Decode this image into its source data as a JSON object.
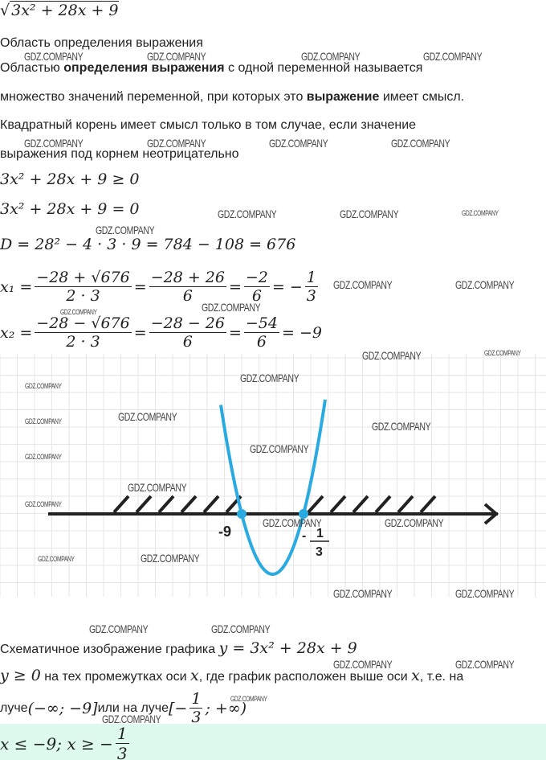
{
  "expression": {
    "radical": "√",
    "radicand": "3x² + 28x + 9"
  },
  "heading": "Область определения выражения",
  "definition": {
    "p1": "Областью ",
    "b1": "определения выражения",
    "p2": " с одной переменной называется",
    "p3": "множество значений переменной, при которых это ",
    "b2": "выражение",
    "p4": " имеет смысл."
  },
  "condition": {
    "line1": "Квадратный корень имеет смысл только в том случае, если значение",
    "line2": "выражения под корнем неотрицательно"
  },
  "math": {
    "inequality": "3x² + 28x + 9 ≥ 0",
    "equation": "3x² + 28x + 9 = 0",
    "discriminant": "D = 28² − 4 · 3 · 9 = 784 − 108 = 676",
    "x1": {
      "lhs": "x₁ =",
      "num1": "−28 + √676",
      "den1": "2 · 3",
      "num2": "−28 + 26",
      "den2": "6",
      "num3": "−2",
      "den3": "6",
      "sign": "= −",
      "num4": "1",
      "den4": "3"
    },
    "x2": {
      "lhs": "x₂ =",
      "num1": "−28 − √676",
      "den1": "2 · 3",
      "num2": "−28 − 26",
      "den2": "6",
      "num3": "−54",
      "den3": "6",
      "result": "= −9"
    }
  },
  "graph": {
    "root1_label": "-9",
    "root2_sign": "-",
    "root2_num": "1",
    "root2_den": "3",
    "curve_color": "#29abe2",
    "axis_color": "#222222",
    "grid_color": "#e6e6e6"
  },
  "caption": {
    "text": "Схематичное изображение графика ",
    "formula": "y = 3x² + 28x + 9"
  },
  "explanation": {
    "f1": "y ≥ 0",
    "t1": " на тех промежутках оси ",
    "x": "x",
    "t2": ", где график расположен выше оси ",
    "t3": ", т.е. на",
    "t4": "луче ",
    "ray1": "(−∞; −9]",
    "t5": " или на луче ",
    "ray2a": "[−",
    "ray2n": "1",
    "ray2d": "3",
    "ray2b": "; +∞)"
  },
  "answer": {
    "a": "x ≤ −9;  x ≥ −",
    "n": "1",
    "d": "3",
    "bg": "#defaee"
  },
  "watermark": "GDZ.COMPANY"
}
